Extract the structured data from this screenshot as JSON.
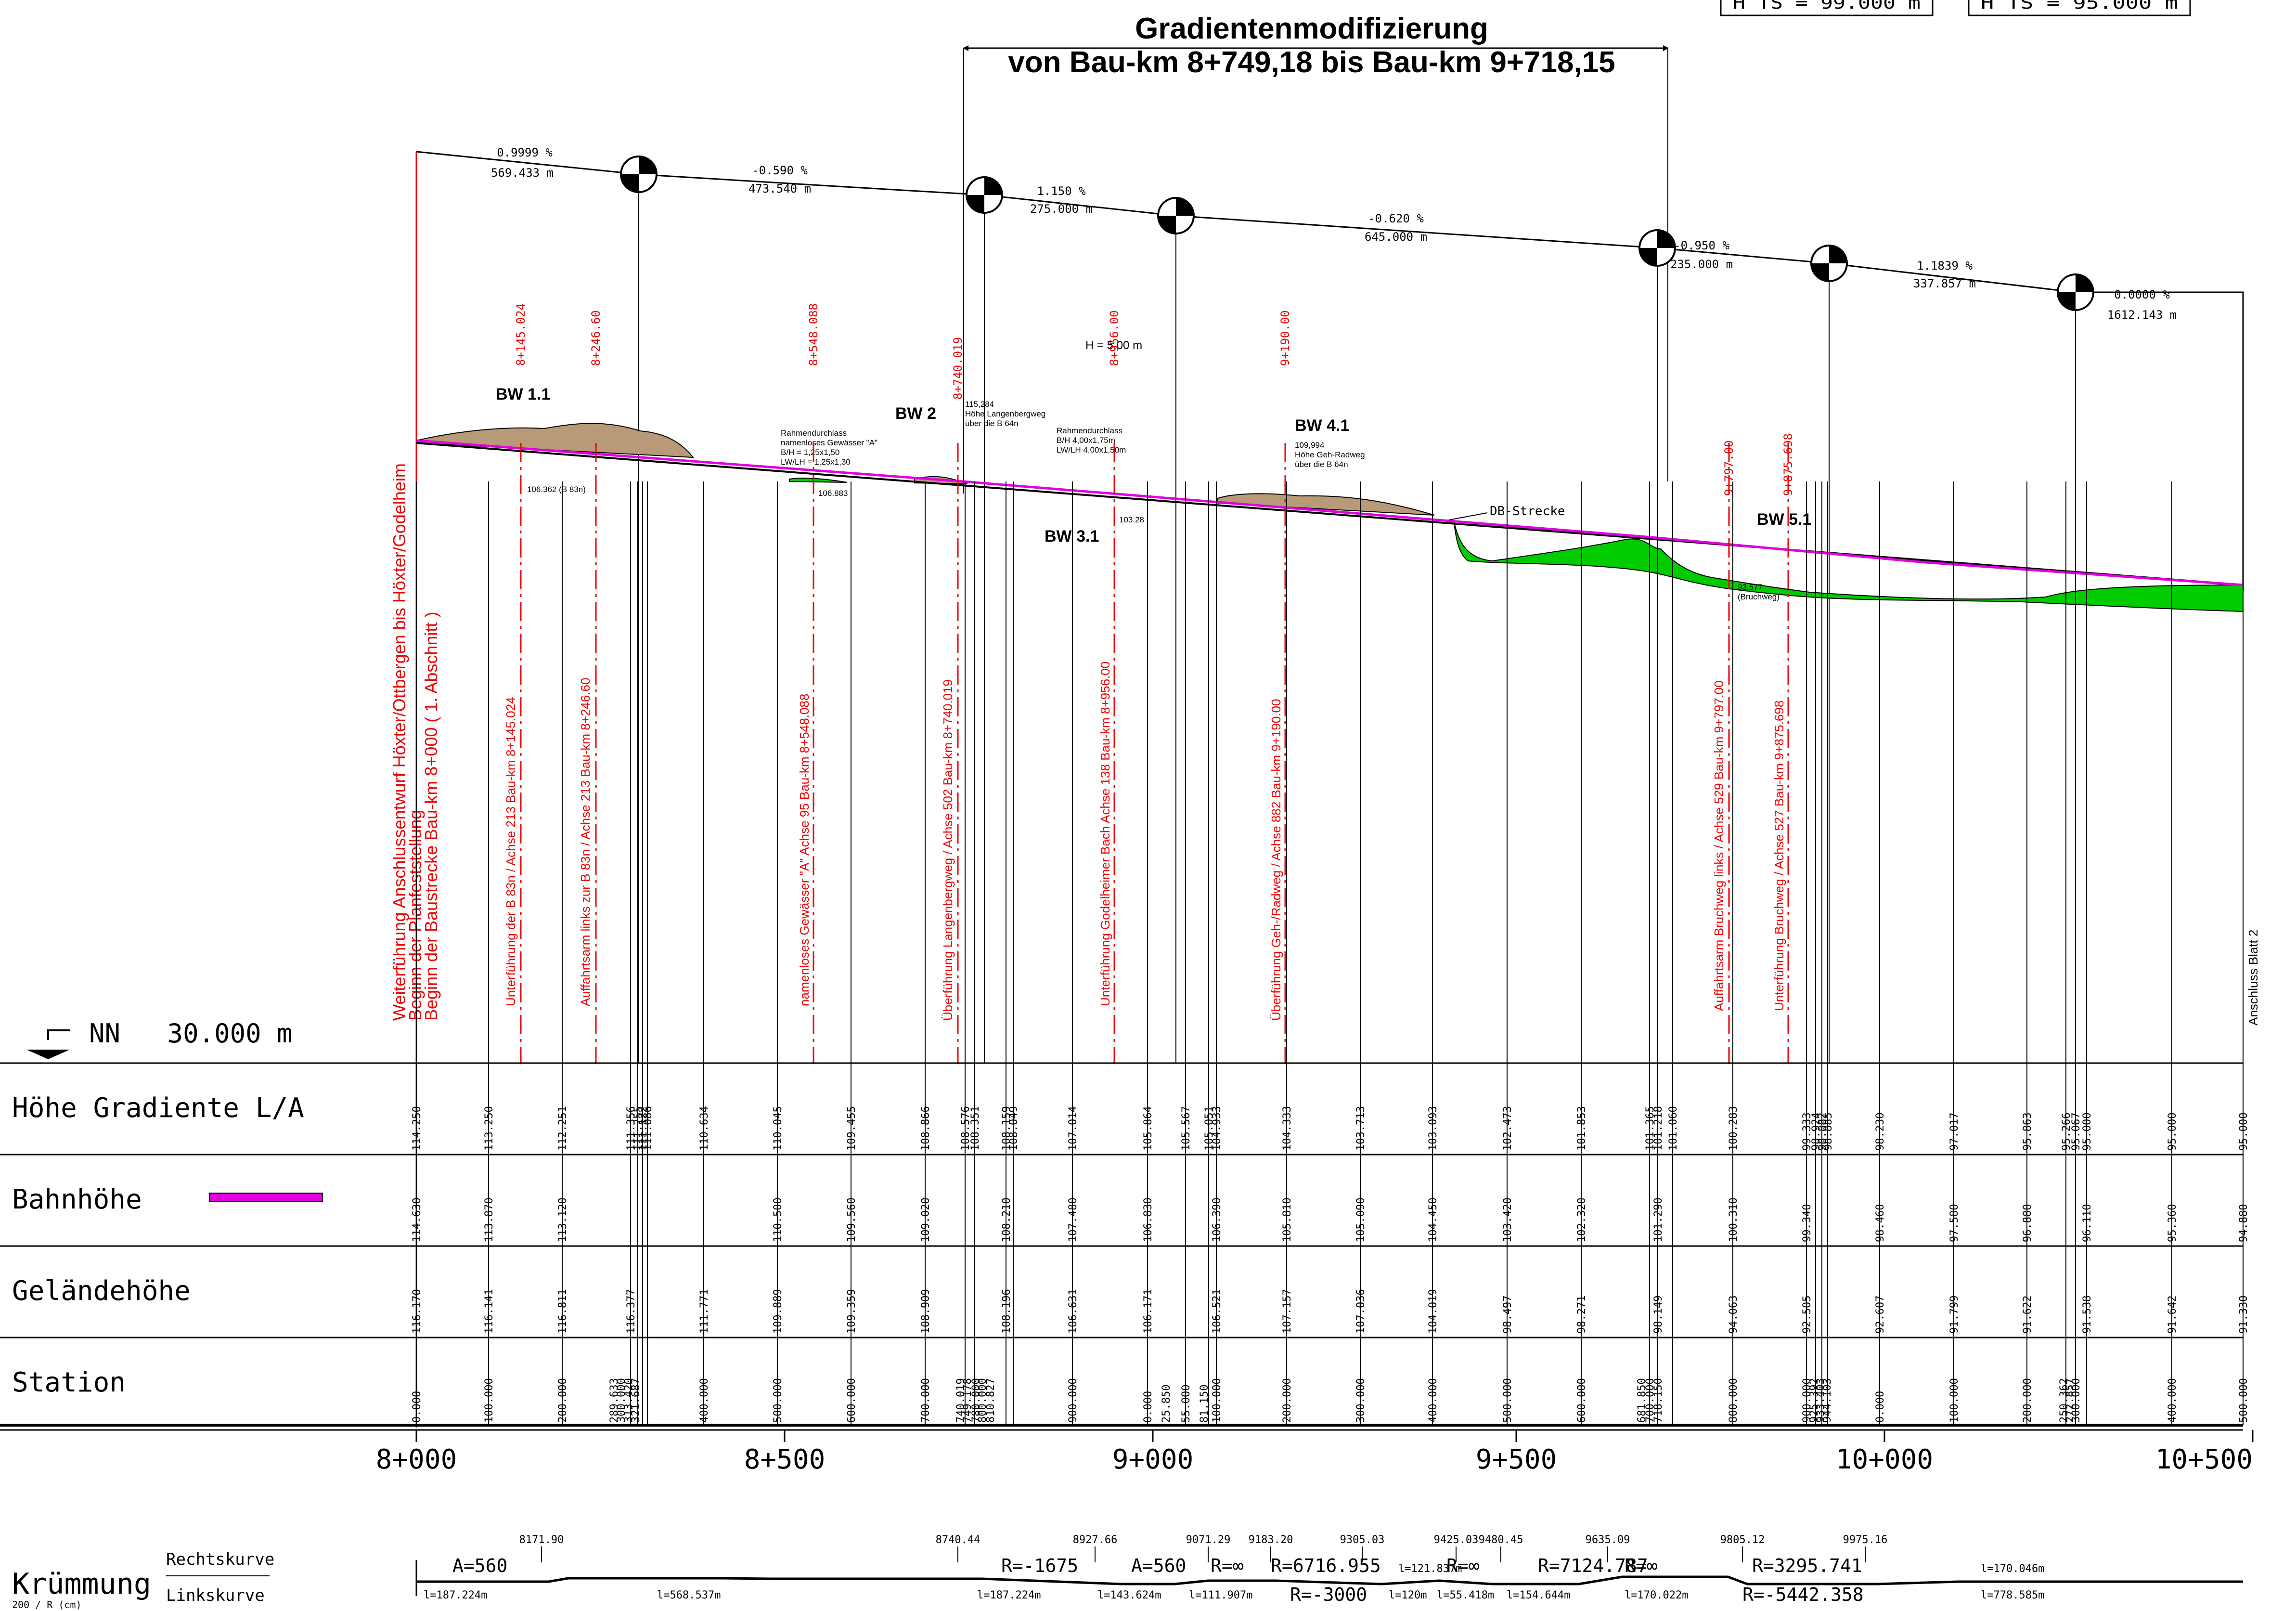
{
  "title": {
    "line1": "Gradientenmodifizierung",
    "line2": "von Bau-km 8+749,18 bis Bau-km 9+718,15"
  },
  "top_corner_labels": [
    "H TS = 99.000 m",
    "H TS = 95.000 m"
  ],
  "datum_label": "NN   30.000 m",
  "row_labels": {
    "hoehe": "Höhe Gradiente L/A",
    "bahnhoehe": "Bahnhöhe",
    "gelaende": "Geländehöhe",
    "station": "Station",
    "kruemmung": "Krümmung",
    "kruemmung_sub": "200 / R (cm)",
    "rechtskurve": "Rechtskurve",
    "linkskurve": "Linkskurve"
  },
  "colors": {
    "rail_line": "#e000e0",
    "cut": "#00cc00",
    "embankment": "#b89a78",
    "annotation_red": "#ee0000",
    "ink": "#000000"
  },
  "chainage_ticks": [
    "8+000",
    "8+500",
    "9+000",
    "9+500",
    "10+000",
    "10+500"
  ],
  "gradients": [
    {
      "percent": "0.9999 %",
      "length": "569.433 m"
    },
    {
      "percent": "-0.590 %",
      "length": "473.540 m"
    },
    {
      "percent": "1.150 %",
      "length": "275.000 m"
    },
    {
      "percent": "-0.620 %",
      "length": "645.000 m"
    },
    {
      "percent": "-0.950 %",
      "length": "235.000 m"
    },
    {
      "percent": "1.1839 %",
      "length": "337.857 m"
    },
    {
      "percent": "0.0000 %",
      "length": "1612.143 m"
    }
  ],
  "structures": [
    {
      "label": "BW 1.1"
    },
    {
      "label": "BW 2"
    },
    {
      "label": "BW 3.1"
    },
    {
      "label": "BW 4.1"
    },
    {
      "label": "BW 5.1"
    }
  ],
  "red_km_labels": [
    "8+145.024",
    "8+246.60",
    "8+548.088",
    "8+740.019",
    "8+956.00",
    "9+190.00",
    "9+797.00",
    "9+875.698"
  ],
  "vertical_texts": [
    "Weiterführung Anschlussentwurf Höxter/Ottbergen bis Höxter/Godelheim",
    "Beginn der Planfeststellung",
    "Beginn der Baustrecke Bau-km 8+000 ( 1. Abschnitt )",
    "Unterführung der B 83n / Achse 213  Bau-km 8+145.024",
    "Auffahrtsarm links zur B 83n / Achse 213  Bau-km 8+246.60",
    "namenloses Gewässer \"A\" Achse 95   Bau-km 8+548.088",
    "Überführung Langenbergweg / Achse 502 Bau-km 8+740.019",
    "Unterführung Godelheimer Bach Achse 138  Bau-km 8+956.00",
    "Überführung Geh-/Radweg / Achse 882  Bau-km 9+190.00",
    "Auffahrtsarm Bruchweg links / Achse 529  Bau-km 9+797.00",
    "Unterführung Bruchweg / Achse 527  Bau-km 9+875.698",
    "Anschluss Blatt 2"
  ],
  "small_notes": {
    "rahmen1": [
      "Rahmendurchlass",
      "namenloses Gewässer \"A\"",
      "B/H      = 1,25x1,50",
      "LW/LH = 1,25x1,30"
    ],
    "langenberg": [
      "115,284",
      "Höhe Langenbergweg",
      "über die B 64n"
    ],
    "rahmen2": [
      "Rahmendurchlass",
      "B/H 4,00x1,75m",
      "LW/LH 4,00x1,50m"
    ],
    "h5": "H = 5,00 m",
    "geh": [
      "109,994",
      "Höhe Geh-Radweg",
      "über die B 64n"
    ],
    "b83n": "106.362 (B 83n)",
    "val106": "106.883",
    "val103": "103.28",
    "bruch": [
      "93.577",
      "(Bruchweg)"
    ],
    "db": "DB-Strecke"
  },
  "table": {
    "hoehe": [
      "114.250",
      "113.250",
      "112.251",
      "111.356",
      "111.255",
      "111.122",
      "111.086",
      "110.634",
      "110.045",
      "109.455",
      "108.866",
      "108.576",
      "108.351",
      "108.159",
      "108.049",
      "107.014",
      "105.864",
      "105.567",
      "105.051",
      "104.933",
      "104.333",
      "103.713",
      "103.093",
      "102.473",
      "101.853",
      "101.365",
      "101.218",
      "101.060",
      "100.283",
      "99.333",
      "98.924",
      "98.882",
      "98.885",
      "98.230",
      "97.017",
      "95.863",
      "95.266",
      "95.067",
      "95.000",
      "95.000",
      "95.000"
    ],
    "bahn": [
      "114.630",
      "113.870",
      "113.120",
      "110.500",
      "109.560",
      "109.020",
      "108.210",
      "107.480",
      "106.830",
      "106.390",
      "105.810",
      "105.090",
      "104.450",
      "103.420",
      "102.320",
      "101.290",
      "100.310",
      "99.340",
      "98.460",
      "97.580",
      "96.880",
      "96.110",
      "95.360",
      "94.880"
    ],
    "gelaende": [
      "116.170",
      "116.141",
      "116.811",
      "116.377",
      "111.771",
      "109.889",
      "109.359",
      "108.909",
      "108.196",
      "106.631",
      "106.171",
      "106.521",
      "107.157",
      "107.036",
      "104.019",
      "98.497",
      "98.271",
      "98.149",
      "94.063",
      "92.505",
      "92.607",
      "91.799",
      "91.622",
      "91.538",
      "91.642",
      "91.330"
    ],
    "station": [
      "0.000",
      "100.000",
      "200.000",
      "289.633",
      "300.000",
      "313.420",
      "321.687",
      "400.000",
      "500.000",
      "600.000",
      "700.000",
      "740.019",
      "749.178",
      "780.000",
      "800.000",
      "810.827",
      "900.000",
      "0.000",
      "25.850",
      "55.000",
      "81.150",
      "100.000",
      "200.000",
      "300.000",
      "400.000",
      "500.000",
      "600.000",
      "681.850",
      "700.000",
      "718.150",
      "800.000",
      "900.000",
      "925.392",
      "933.403",
      "944.103",
      "0.000",
      "100.000",
      "200.000",
      "250.362",
      "272.857",
      "300.000",
      "400.000",
      "500.000"
    ]
  },
  "curvature": {
    "stations": [
      "8171.90",
      "8740.44",
      "8927.66",
      "9071.29",
      "9183.20",
      "9305.03",
      "9425.03",
      "9480.45",
      "9635.09",
      "9805.12",
      "9975.16"
    ],
    "segments": [
      {
        "top": "A=560",
        "bottom": "l=187.224m"
      },
      {
        "top": "R=-1675",
        "bottom": "l=568.537m"
      },
      {
        "top": "A=560",
        "bottom": "l=187.224m"
      },
      {
        "top": "R=∞",
        "bottom": "l=143.624m"
      },
      {
        "top": "R=6716.955",
        "bottom": "l=111.907m"
      },
      {
        "top": "l=121.837m",
        "bottom": "R=-3000"
      },
      {
        "top": "R=∞",
        "bottom": "l=120m"
      },
      {
        "top": "R=7124.787",
        "bottom": "l=55.418m"
      },
      {
        "top": "R=∞",
        "bottom": "l=154.644m"
      },
      {
        "top": "R=3295.741",
        "bottom": "l=170.022m"
      },
      {
        "top": "l=170.046m",
        "bottom": "R=-5442.358"
      },
      {
        "top": "R=∞",
        "bottom": "l=778.585m"
      }
    ]
  }
}
